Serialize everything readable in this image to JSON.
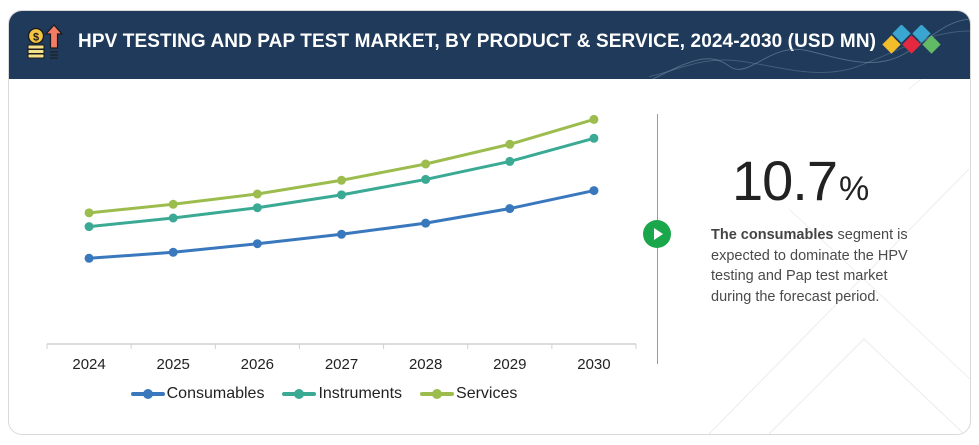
{
  "header": {
    "title": "HPV TESTING AND PAP TEST MARKET, BY PRODUCT & SERVICE, 2024-2030 (USD MN)",
    "icon": "money-growth-icon",
    "logo": "brand-diamonds-logo",
    "background_color": "#1f3a5a"
  },
  "highlight": {
    "value": "10.7",
    "unit": "%",
    "description_bold": "The consumables",
    "description_rest": " segment is expected to dominate the HPV testing and Pap test market during the forecast period.",
    "icon": "play-circle-icon",
    "icon_color": "#1aa64a"
  },
  "chart_data": {
    "type": "line",
    "title": "HPV Testing and Pap Test Market, by Product & Service, 2024-2030 (USD MN)",
    "xlabel": "",
    "ylabel": "",
    "x": [
      "2024",
      "2025",
      "2026",
      "2027",
      "2028",
      "2029",
      "2030"
    ],
    "y_axis_shown": false,
    "grid": false,
    "value_note": "No y-axis labels shown; values are relative index estimates (Consumables 2024 = 100)",
    "ylim": [
      0,
      280
    ],
    "legend_position": "bottom",
    "series": [
      {
        "name": "Consumables",
        "color": "#3a78be",
        "values": [
          100,
          107,
          117,
          128,
          141,
          158,
          179
        ]
      },
      {
        "name": "Instruments",
        "color": "#3aaa94",
        "values": [
          137,
          147,
          159,
          174,
          192,
          213,
          240
        ]
      },
      {
        "name": "Services",
        "color": "#9cbd4e",
        "values": [
          153,
          163,
          175,
          191,
          210,
          233,
          262
        ]
      }
    ]
  }
}
